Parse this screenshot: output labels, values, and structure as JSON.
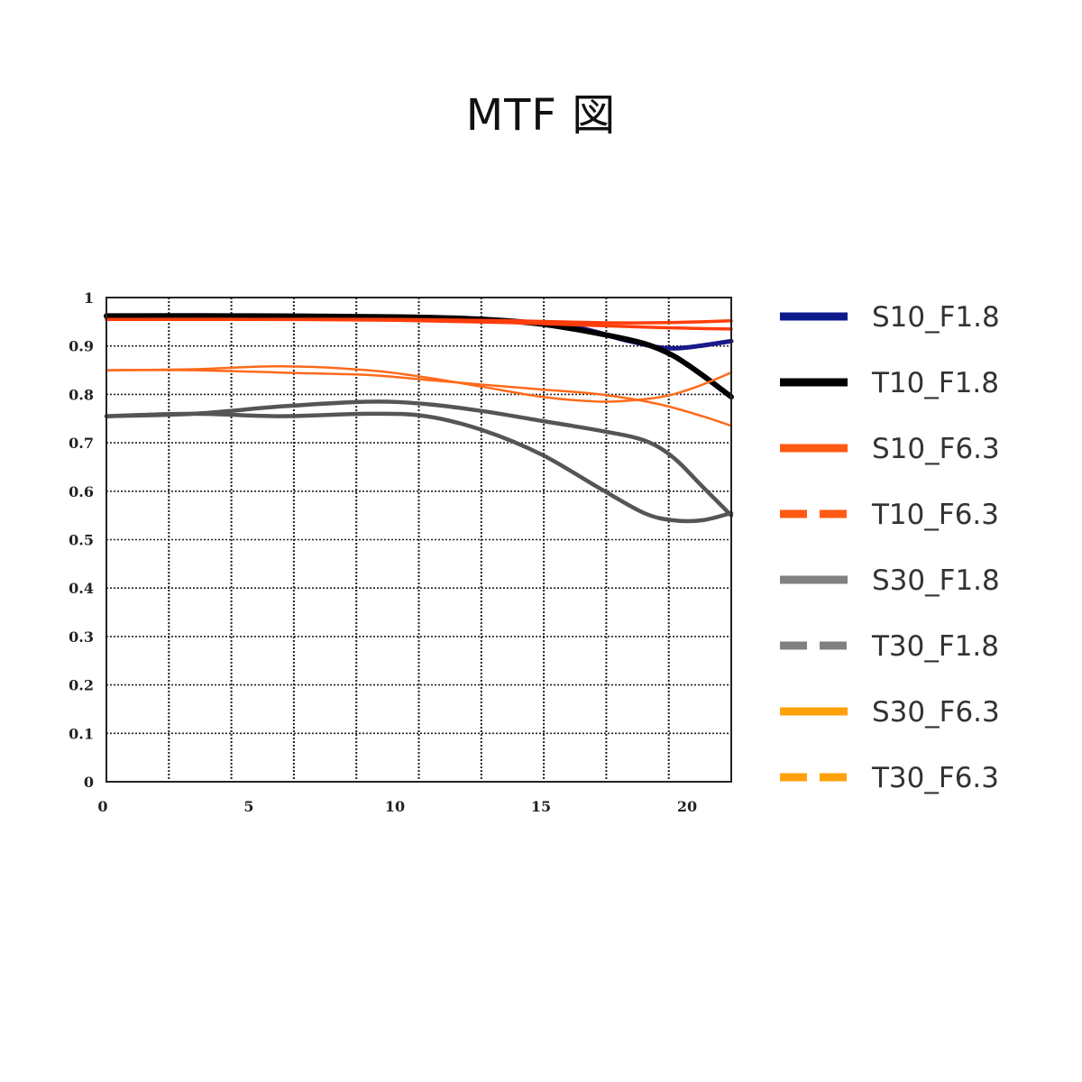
{
  "chart_data": {
    "type": "line",
    "title": "MTF 図",
    "xlabel": "",
    "ylabel": "",
    "xlim": [
      0,
      21.5
    ],
    "ylim": [
      0,
      1
    ],
    "x_ticks": [
      "0",
      "5",
      "10",
      "15",
      "20"
    ],
    "x_tick_values": [
      0,
      5,
      10,
      15,
      20
    ],
    "y_ticks": [
      "0",
      "0.1",
      "0.2",
      "0.3",
      "0.4",
      "0.5",
      "0.6",
      "0.7",
      "0.8",
      "0.9",
      "1"
    ],
    "y_tick_values": [
      0,
      0.1,
      0.2,
      0.3,
      0.4,
      0.5,
      0.6,
      0.7,
      0.8,
      0.9,
      1.0
    ],
    "x_grid_values": [
      0,
      2.15,
      4.3,
      6.45,
      8.6,
      10.75,
      12.9,
      15.05,
      17.2,
      19.35,
      21.5
    ],
    "grid": true,
    "legend_position": "right",
    "series": [
      {
        "name": "S10_F1.8",
        "color": "#1a1a8c",
        "dash": "solid",
        "x": [
          0,
          5,
          10,
          13,
          16,
          18,
          19.5,
          21.5
        ],
        "y": [
          0.96,
          0.96,
          0.96,
          0.955,
          0.94,
          0.91,
          0.895,
          0.91
        ]
      },
      {
        "name": "T10_F1.8",
        "color": "#000000",
        "dash": "solid",
        "x": [
          0,
          5,
          10,
          13,
          15,
          17,
          18.5,
          19.5,
          20.5,
          21.5
        ],
        "y": [
          0.962,
          0.962,
          0.96,
          0.955,
          0.945,
          0.925,
          0.905,
          0.88,
          0.84,
          0.795
        ]
      },
      {
        "name": "S10_F6.3",
        "color": "#ff3d0a",
        "dash": "solid",
        "x": [
          0,
          5,
          10,
          14,
          17,
          19,
          20.5,
          21.5
        ],
        "y": [
          0.955,
          0.955,
          0.955,
          0.952,
          0.948,
          0.948,
          0.95,
          0.952
        ]
      },
      {
        "name": "T10_F6.3",
        "color": "#ff3d0a",
        "dash": "dashed",
        "x": [
          0,
          5,
          10,
          14,
          17,
          19,
          20.5,
          21.5
        ],
        "y": [
          0.955,
          0.955,
          0.953,
          0.948,
          0.942,
          0.938,
          0.936,
          0.935
        ]
      },
      {
        "name": "S30_F1.8",
        "color": "#555555",
        "dash": "solid",
        "x": [
          0,
          3,
          6,
          9,
          11,
          13,
          15,
          17,
          18.5,
          19.5,
          20.5,
          21.5
        ],
        "y": [
          0.755,
          0.76,
          0.775,
          0.785,
          0.78,
          0.765,
          0.745,
          0.725,
          0.705,
          0.67,
          0.61,
          0.55
        ]
      },
      {
        "name": "T30_F1.8",
        "color": "#555555",
        "dash": "solid",
        "x": [
          0,
          3,
          6,
          9,
          11,
          13,
          15,
          17,
          18.5,
          19.5,
          20.5,
          21.5
        ],
        "y": [
          0.755,
          0.76,
          0.755,
          0.76,
          0.755,
          0.725,
          0.675,
          0.605,
          0.555,
          0.54,
          0.54,
          0.555
        ]
      },
      {
        "name": "S30_F6.3",
        "color": "#ff6a1a",
        "dash": "solid",
        "x": [
          0,
          3,
          6,
          9,
          11,
          13,
          15,
          17,
          19,
          20.5,
          21.5
        ],
        "y": [
          0.85,
          0.85,
          0.845,
          0.84,
          0.83,
          0.82,
          0.81,
          0.8,
          0.78,
          0.755,
          0.735
        ]
      },
      {
        "name": "T30_F6.3",
        "color": "#ff6a1a",
        "dash": "dashed",
        "x": [
          0,
          3,
          6,
          9,
          11,
          13,
          15,
          17,
          18.5,
          19.5,
          20.5,
          21.5
        ],
        "y": [
          0.85,
          0.852,
          0.858,
          0.85,
          0.835,
          0.815,
          0.795,
          0.785,
          0.79,
          0.8,
          0.82,
          0.845
        ]
      }
    ]
  },
  "legend": [
    {
      "label": "S10_F1.8",
      "color": "#0d1a8c",
      "dash": "solid"
    },
    {
      "label": "T10_F1.8",
      "color": "#000000",
      "dash": "solid"
    },
    {
      "label": "S10_F6.3",
      "color": "#ff5a14",
      "dash": "solid"
    },
    {
      "label": "T10_F6.3",
      "color": "#ff5a14",
      "dash": "dashed"
    },
    {
      "label": "S30_F1.8",
      "color": "#808080",
      "dash": "solid"
    },
    {
      "label": "T30_F1.8",
      "color": "#808080",
      "dash": "dashed"
    },
    {
      "label": "S30_F6.3",
      "color": "#ffa10a",
      "dash": "solid"
    },
    {
      "label": "T30_F6.3",
      "color": "#ffa10a",
      "dash": "dashed"
    }
  ]
}
